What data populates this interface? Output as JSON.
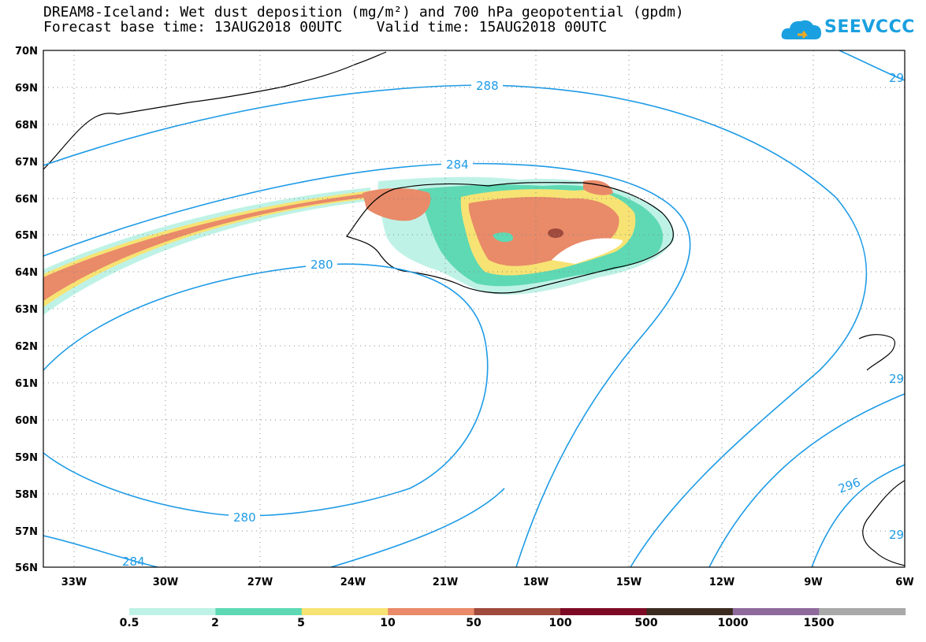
{
  "title_line1": "DREAM8-Iceland: Wet dust deposition (mg/m²) and 700 hPa geopotential (gpdm)",
  "title_line2": "Forecast base time: 13AUG2018 00UTC    Valid time: 15AUG2018 00UTC",
  "logo_text": "SEEVCCC",
  "map": {
    "lat_labels": [
      "70N",
      "69N",
      "68N",
      "67N",
      "66N",
      "65N",
      "64N",
      "63N",
      "62N",
      "61N",
      "60N",
      "59N",
      "58N",
      "57N",
      "56N"
    ],
    "lon_labels": [
      "33W",
      "30W",
      "27W",
      "24W",
      "21W",
      "18W",
      "15W",
      "12W",
      "9W",
      "6W"
    ],
    "contour_labels": [
      "288",
      "284",
      "280",
      "280",
      "284",
      "296",
      "29",
      "29",
      "29"
    ],
    "contour_color": "#1e9be6",
    "coastline_color": "#000000"
  },
  "colorbar": {
    "labels": [
      "0.5",
      "2",
      "5",
      "10",
      "50",
      "100",
      "500",
      "1000",
      "1500"
    ],
    "colors": [
      "#bff2e6",
      "#5ed9b4",
      "#f7e373",
      "#e98a69",
      "#a04a3d",
      "#7d0a25",
      "#3a2a1f",
      "#8e6a9c",
      "#a9a9a9"
    ]
  }
}
